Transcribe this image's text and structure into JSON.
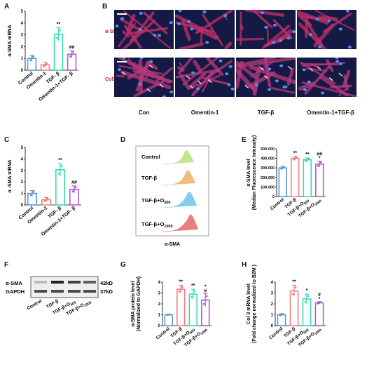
{
  "panels": {
    "A": {
      "letter": "A",
      "ylabel": "α-SMA mRNA",
      "yticks": [
        "0",
        "1",
        "2",
        "3",
        "4",
        "5"
      ],
      "categories": [
        "Control",
        "Omentin-1",
        "TGF- β",
        "Omentin-1+TGF- β"
      ],
      "sig": [
        "",
        "",
        "**",
        "##"
      ]
    },
    "B": {
      "letter": "B",
      "row_labels": [
        "α-SMA",
        "Col3"
      ],
      "col_labels": [
        "Con",
        "Omentin-1",
        "TGF-β",
        "Omentin-1+TGF-β"
      ]
    },
    "C": {
      "letter": "C",
      "ylabel": "α -SMA mRNA",
      "yticks": [
        "0",
        "1",
        "2",
        "3",
        "4",
        "5"
      ],
      "categories": [
        "Control",
        "Omentin-1",
        "TGF- β",
        "Omentin-1+TGF- β"
      ],
      "sig": [
        "",
        "",
        "**",
        "##"
      ]
    },
    "D": {
      "letter": "D",
      "labels": [
        "Control",
        "TGF-β",
        "TGF-β+O",
        "TGF-β+O"
      ],
      "subs": [
        "",
        "",
        "500",
        "1000"
      ],
      "xlabel": "α-SMA"
    },
    "E": {
      "letter": "E",
      "ylabel": "α-SMA level",
      "ylabel2": "(Median Fluorescence Intensity)",
      "yticks": [
        "0",
        "100.000",
        "200.000",
        "300.000",
        "400.000",
        "500.000"
      ],
      "categories": [
        "Control",
        "TGF-β",
        "TGF-β+O",
        "TGF-β+O"
      ],
      "subs": [
        "",
        "",
        "500",
        "1000"
      ],
      "sig": [
        "",
        "**",
        "**",
        "##"
      ],
      "sig2": [
        "",
        "",
        "",
        "*"
      ]
    },
    "F": {
      "letter": "F",
      "rows": [
        "α-SMA",
        "GAPDH"
      ],
      "kd": [
        "42kD",
        "37kD"
      ],
      "categories": [
        "Control",
        "TGF-β",
        "TGF-β+O",
        "TGF-β+O"
      ],
      "subs": [
        "",
        "",
        "500",
        "1000"
      ]
    },
    "G": {
      "letter": "G",
      "ylabel": "α-SMA protein level",
      "ylabel2": "(Normalized to GAPDH)",
      "yticks": [
        "0",
        "1",
        "2",
        "3",
        "4"
      ],
      "categories": [
        "Control",
        "TGF-β",
        "TGF-β+O",
        "TGF-β+O"
      ],
      "subs": [
        "",
        "",
        "500",
        "1000"
      ],
      "sig": [
        "",
        "**",
        "**",
        "*"
      ],
      "sig2": [
        "",
        "",
        "",
        "#"
      ]
    },
    "H": {
      "letter": "H",
      "ylabel": "Col 3 mRNA level",
      "ylabel2": "(Fold change normalized to B2M )",
      "yticks": [
        "0",
        "1",
        "2",
        "3",
        "4"
      ],
      "categories": [
        "Control",
        "TGF-β",
        "TGF-β+O",
        "TGF-β+O"
      ],
      "subs": [
        "",
        "",
        "500",
        "1000"
      ],
      "sig": [
        "",
        "**",
        "*",
        "#"
      ],
      "sig2": [
        "",
        "",
        "",
        "*"
      ]
    }
  },
  "colors": {
    "blue": "#5b9bd5",
    "pink": "#f08080",
    "green": "#3dd9b0",
    "purple": "#b05cd6"
  },
  "chart_data": [
    {
      "type": "bar",
      "id": "A",
      "categories": [
        "Control",
        "Omentin-1",
        "TGF- β",
        "Omentin-1+TGF- β"
      ],
      "values": [
        1.0,
        0.45,
        3.05,
        1.35
      ],
      "errors": [
        0.25,
        0.2,
        0.55,
        0.3
      ],
      "ylim": [
        0,
        5
      ],
      "ylabel": "α-SMA mRNA"
    },
    {
      "type": "bar",
      "id": "C",
      "categories": [
        "Control",
        "Omentin-1",
        "TGF- β",
        "Omentin-1+TGF- β"
      ],
      "values": [
        1.0,
        0.45,
        3.05,
        1.35
      ],
      "errors": [
        0.25,
        0.2,
        0.55,
        0.3
      ],
      "ylim": [
        0,
        5
      ],
      "ylabel": "α -SMA mRNA"
    },
    {
      "type": "bar",
      "id": "E",
      "categories": [
        "Control",
        "TGF-β",
        "TGF-β+O500",
        "TGF-β+O1000"
      ],
      "values": [
        300000,
        400000,
        385000,
        340000
      ],
      "errors": [
        15000,
        20000,
        20000,
        30000
      ],
      "ylim": [
        0,
        500000
      ],
      "ylabel": "α-SMA level (Median Fluorescence Intensity)"
    },
    {
      "type": "bar",
      "id": "G",
      "categories": [
        "Control",
        "TGF-β",
        "TGF-β+O500",
        "TGF-β+O1000"
      ],
      "values": [
        1.0,
        3.35,
        2.9,
        2.35
      ],
      "errors": [
        0.05,
        0.35,
        0.45,
        0.6
      ],
      "ylim": [
        0,
        4
      ],
      "ylabel": "α-SMA protein level (Normalized to GAPDH)"
    },
    {
      "type": "bar",
      "id": "H",
      "categories": [
        "Control",
        "TGF-β",
        "TGF-β+O500",
        "TGF-β+O1000"
      ],
      "values": [
        1.0,
        3.2,
        2.45,
        2.1
      ],
      "errors": [
        0.1,
        0.5,
        0.45,
        0.1
      ],
      "ylim": [
        0,
        4
      ],
      "ylabel": "Col 3 mRNA level (Fold change normalized to B2M )"
    }
  ]
}
